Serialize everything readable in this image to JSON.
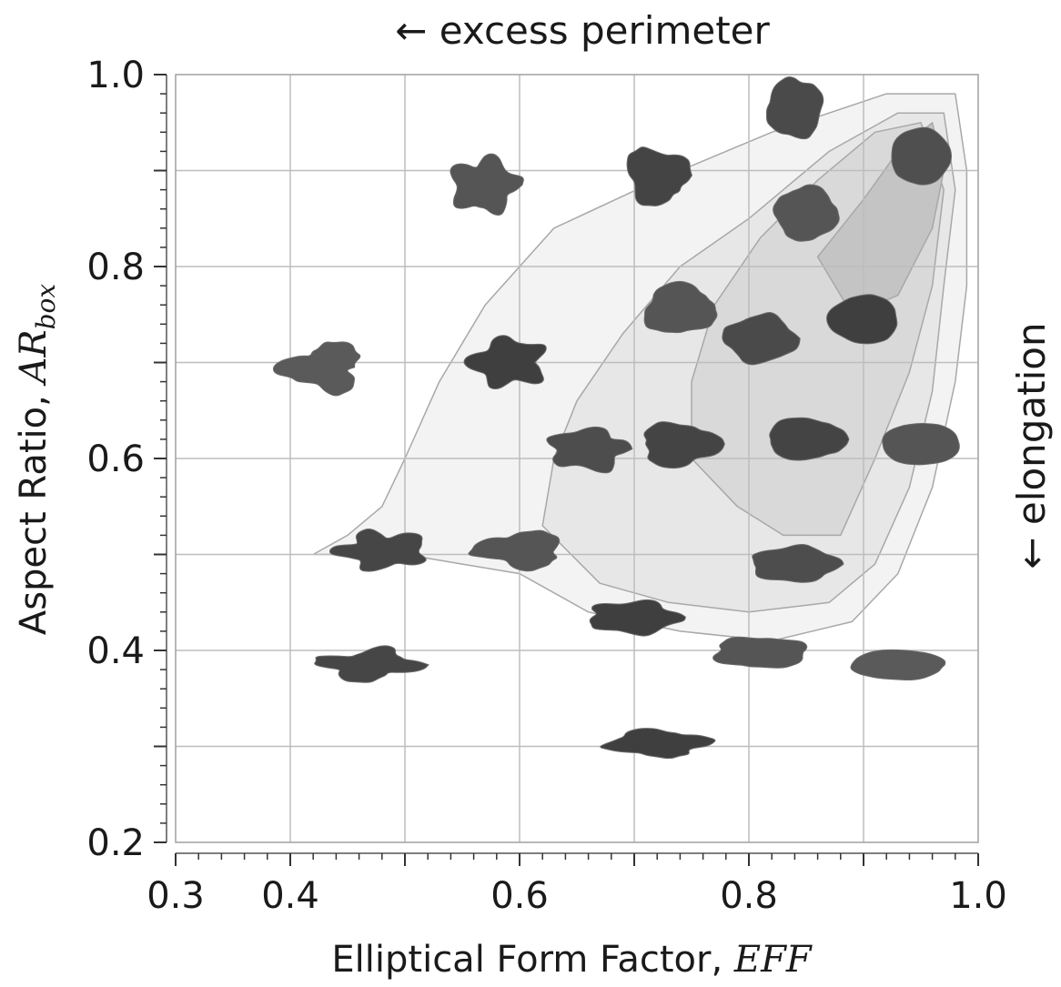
{
  "chart_data": {
    "type": "scatter",
    "xlabel": "Elliptical Form Factor, ",
    "xlabel_symbol": "EFF",
    "ylabel": "Aspect Ratio, ",
    "ylabel_symbol": "AR",
    "ylabel_subscript": "box",
    "top_note": "← excess perimeter",
    "right_note": "← elongation",
    "xlim": [
      0.3,
      1.0
    ],
    "ylim": [
      0.2,
      1.0
    ],
    "x_ticks": [
      0.3,
      0.4,
      0.6,
      0.8,
      1.0
    ],
    "x_tick_labels": [
      "0.3",
      "0.4",
      "0.6",
      "0.8",
      "1.0"
    ],
    "y_ticks": [
      0.2,
      0.4,
      0.6,
      0.8,
      1.0
    ],
    "y_tick_labels": [
      "0.2",
      "0.4",
      "0.6",
      "0.8",
      "1.0"
    ],
    "x_grid": [
      0.4,
      0.5,
      0.6,
      0.7,
      0.8,
      0.9
    ],
    "y_grid": [
      0.3,
      0.4,
      0.5,
      0.6,
      0.7,
      0.8,
      0.9
    ],
    "grid": true,
    "density_contours": [
      {
        "level": 1,
        "fill": "#f3f3f3",
        "points": [
          [
            0.42,
            0.5
          ],
          [
            0.45,
            0.52
          ],
          [
            0.48,
            0.55
          ],
          [
            0.5,
            0.6
          ],
          [
            0.53,
            0.68
          ],
          [
            0.57,
            0.76
          ],
          [
            0.63,
            0.84
          ],
          [
            0.72,
            0.89
          ],
          [
            0.82,
            0.94
          ],
          [
            0.92,
            0.98
          ],
          [
            0.98,
            0.98
          ],
          [
            0.99,
            0.9
          ],
          [
            0.99,
            0.78
          ],
          [
            0.98,
            0.68
          ],
          [
            0.96,
            0.57
          ],
          [
            0.93,
            0.48
          ],
          [
            0.89,
            0.43
          ],
          [
            0.82,
            0.41
          ],
          [
            0.74,
            0.42
          ],
          [
            0.66,
            0.44
          ],
          [
            0.6,
            0.48
          ],
          [
            0.55,
            0.49
          ],
          [
            0.5,
            0.5
          ],
          [
            0.46,
            0.5
          ]
        ]
      },
      {
        "level": 2,
        "fill": "#e7e7e7",
        "points": [
          [
            0.62,
            0.53
          ],
          [
            0.63,
            0.6
          ],
          [
            0.65,
            0.66
          ],
          [
            0.69,
            0.73
          ],
          [
            0.74,
            0.8
          ],
          [
            0.8,
            0.85
          ],
          [
            0.87,
            0.92
          ],
          [
            0.93,
            0.96
          ],
          [
            0.97,
            0.96
          ],
          [
            0.98,
            0.88
          ],
          [
            0.97,
            0.78
          ],
          [
            0.96,
            0.67
          ],
          [
            0.94,
            0.57
          ],
          [
            0.91,
            0.49
          ],
          [
            0.87,
            0.45
          ],
          [
            0.8,
            0.44
          ],
          [
            0.73,
            0.45
          ],
          [
            0.67,
            0.47
          ]
        ]
      },
      {
        "level": 3,
        "fill": "#d9d9d9",
        "points": [
          [
            0.75,
            0.6
          ],
          [
            0.75,
            0.68
          ],
          [
            0.77,
            0.76
          ],
          [
            0.81,
            0.83
          ],
          [
            0.86,
            0.89
          ],
          [
            0.91,
            0.94
          ],
          [
            0.95,
            0.95
          ],
          [
            0.97,
            0.88
          ],
          [
            0.96,
            0.78
          ],
          [
            0.94,
            0.69
          ],
          [
            0.91,
            0.6
          ],
          [
            0.88,
            0.52
          ],
          [
            0.83,
            0.52
          ],
          [
            0.79,
            0.55
          ]
        ]
      },
      {
        "level": 4,
        "fill": "#c4c4c4",
        "points": [
          [
            0.86,
            0.81
          ],
          [
            0.89,
            0.75
          ],
          [
            0.93,
            0.77
          ],
          [
            0.96,
            0.84
          ],
          [
            0.97,
            0.9
          ],
          [
            0.96,
            0.95
          ],
          [
            0.93,
            0.92
          ],
          [
            0.9,
            0.87
          ]
        ]
      }
    ],
    "particle_images": [
      {
        "x": 0.84,
        "y": 0.965,
        "shade": "#4a4a4a"
      },
      {
        "x": 0.95,
        "y": 0.915,
        "shade": "#4f4f4f"
      },
      {
        "x": 0.57,
        "y": 0.885,
        "shade": "#555555"
      },
      {
        "x": 0.72,
        "y": 0.895,
        "shade": "#444444"
      },
      {
        "x": 0.85,
        "y": 0.855,
        "shade": "#555555"
      },
      {
        "x": 0.74,
        "y": 0.755,
        "shade": "#555555"
      },
      {
        "x": 0.81,
        "y": 0.725,
        "shade": "#4a4a4a"
      },
      {
        "x": 0.9,
        "y": 0.745,
        "shade": "#3f3f3f"
      },
      {
        "x": 0.43,
        "y": 0.695,
        "shade": "#5a5a5a"
      },
      {
        "x": 0.59,
        "y": 0.7,
        "shade": "#3f3f3f"
      },
      {
        "x": 0.66,
        "y": 0.61,
        "shade": "#4d4d4d"
      },
      {
        "x": 0.74,
        "y": 0.615,
        "shade": "#444444"
      },
      {
        "x": 0.85,
        "y": 0.62,
        "shade": "#444444"
      },
      {
        "x": 0.95,
        "y": 0.615,
        "shade": "#555555"
      },
      {
        "x": 0.48,
        "y": 0.505,
        "shade": "#464646"
      },
      {
        "x": 0.6,
        "y": 0.505,
        "shade": "#555555"
      },
      {
        "x": 0.84,
        "y": 0.49,
        "shade": "#4d4d4d"
      },
      {
        "x": 0.7,
        "y": 0.435,
        "shade": "#3f3f3f"
      },
      {
        "x": 0.47,
        "y": 0.385,
        "shade": "#464646"
      },
      {
        "x": 0.81,
        "y": 0.398,
        "shade": "#555555"
      },
      {
        "x": 0.93,
        "y": 0.385,
        "shade": "#5a5a5a"
      },
      {
        "x": 0.72,
        "y": 0.303,
        "shade": "#3f3f3f"
      }
    ]
  }
}
